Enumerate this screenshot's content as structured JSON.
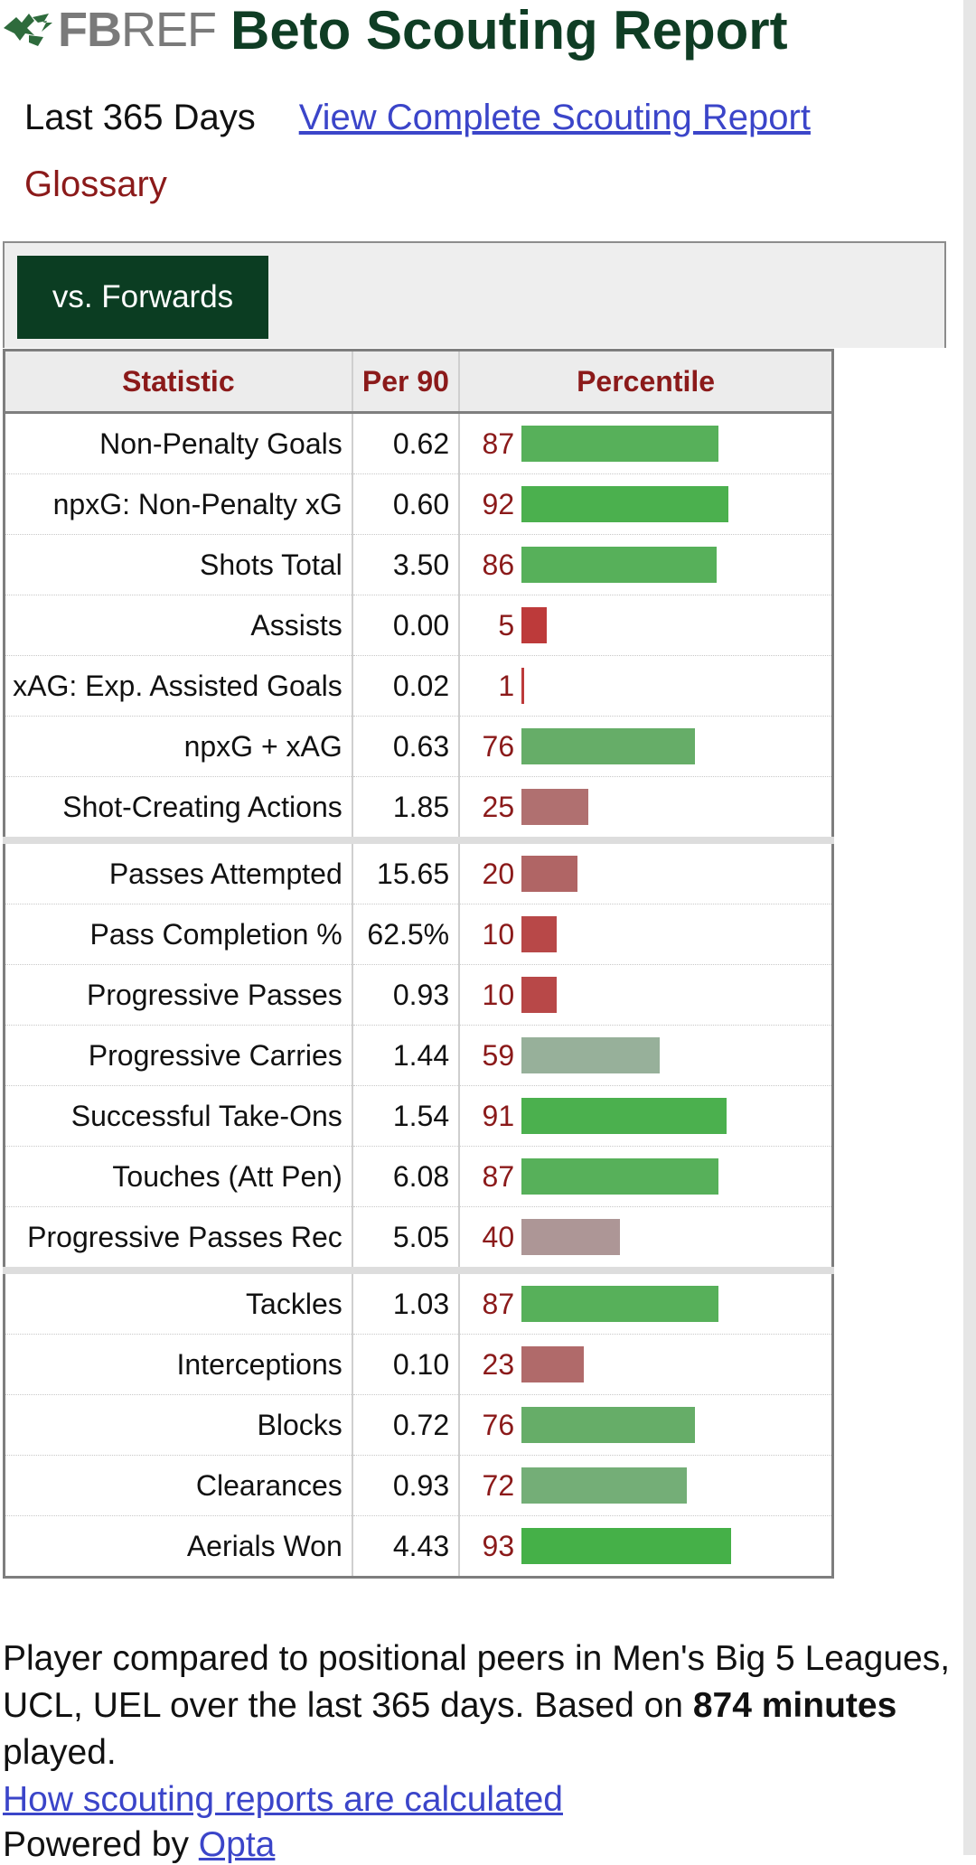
{
  "header": {
    "logo_fb": "FB",
    "logo_ref": "REF",
    "title": "Beto Scouting Report"
  },
  "subnav": {
    "period": "Last 365 Days",
    "complete_link": "View Complete Scouting Report",
    "glossary": "Glossary"
  },
  "tabs": [
    {
      "label": "vs. Forwards",
      "active": true
    }
  ],
  "table": {
    "headers": [
      "Statistic",
      "Per 90",
      "Percentile"
    ],
    "groups": [
      [
        {
          "stat": "Non-Penalty Goals",
          "per90": "0.62",
          "pct": "87",
          "color": "#57b05a"
        },
        {
          "stat": "npxG: Non-Penalty xG",
          "per90": "0.60",
          "pct": "92",
          "color": "#4bb04e"
        },
        {
          "stat": "Shots Total",
          "per90": "3.50",
          "pct": "86",
          "color": "#57b05a"
        },
        {
          "stat": "Assists",
          "per90": "0.00",
          "pct": "5",
          "color": "#bd3a3a"
        },
        {
          "stat": "xAG: Exp. Assisted Goals",
          "per90": "0.02",
          "pct": "1",
          "color": "#bd3a3a"
        },
        {
          "stat": "npxG + xAG",
          "per90": "0.63",
          "pct": "76",
          "color": "#66ad68"
        },
        {
          "stat": "Shot-Creating Actions",
          "per90": "1.85",
          "pct": "25",
          "color": "#b07070"
        }
      ],
      [
        {
          "stat": "Passes Attempted",
          "per90": "15.65",
          "pct": "20",
          "color": "#b06565"
        },
        {
          "stat": "Pass Completion %",
          "per90": "62.5%",
          "pct": "10",
          "color": "#b84848"
        },
        {
          "stat": "Progressive Passes",
          "per90": "0.93",
          "pct": "10",
          "color": "#b84848"
        },
        {
          "stat": "Progressive Carries",
          "per90": "1.44",
          "pct": "59",
          "color": "#97b09a"
        },
        {
          "stat": "Successful Take-Ons",
          "per90": "1.54",
          "pct": "91",
          "color": "#4bb04e"
        },
        {
          "stat": "Touches (Att Pen)",
          "per90": "6.08",
          "pct": "87",
          "color": "#57b05a"
        },
        {
          "stat": "Progressive Passes Rec",
          "per90": "5.05",
          "pct": "40",
          "color": "#ad9696"
        }
      ],
      [
        {
          "stat": "Tackles",
          "per90": "1.03",
          "pct": "87",
          "color": "#57b05a"
        },
        {
          "stat": "Interceptions",
          "per90": "0.10",
          "pct": "23",
          "color": "#b06a6a"
        },
        {
          "stat": "Blocks",
          "per90": "0.72",
          "pct": "76",
          "color": "#66ad68"
        },
        {
          "stat": "Clearances",
          "per90": "0.93",
          "pct": "72",
          "color": "#74ae77"
        },
        {
          "stat": "Aerials Won",
          "per90": "4.43",
          "pct": "93",
          "color": "#45b048"
        }
      ]
    ]
  },
  "footer": {
    "text_1": "Player compared to positional peers in Men's Big 5 Leagues, UCL, UEL over the last 365 days. Based on ",
    "minutes_bold": "874 minutes",
    "text_2": " played.",
    "how_link": "How scouting reports are calculated",
    "powered_by": "Powered by ",
    "opta": "Opta"
  }
}
